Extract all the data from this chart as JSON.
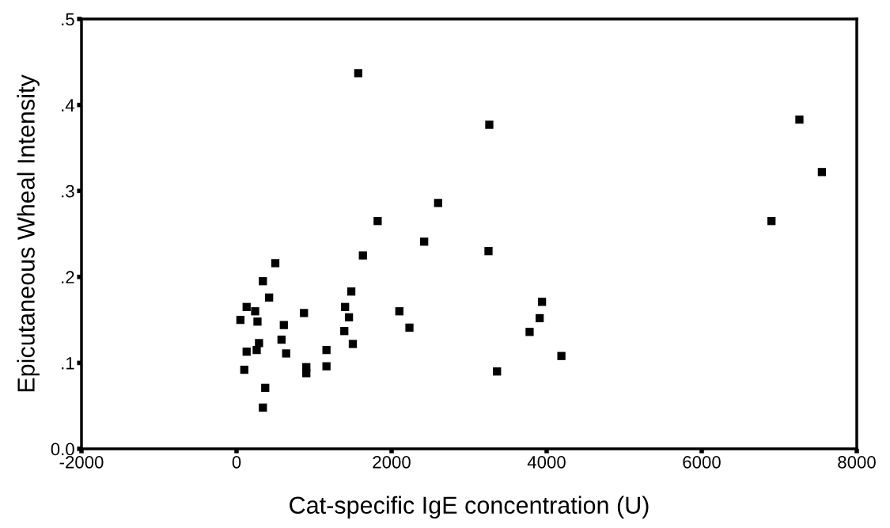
{
  "chart_data": {
    "type": "scatter",
    "xlabel": "Cat-specific IgE concentration (U)",
    "ylabel": "Epicutaneous Wheal Intensity",
    "x": [
      500,
      340,
      420,
      130,
      240,
      50,
      270,
      610,
      870,
      580,
      290,
      260,
      130,
      640,
      100,
      370,
      340,
      900,
      900,
      1160,
      1160,
      1400,
      1450,
      1480,
      1390,
      1500,
      1630,
      2100,
      2230,
      2420,
      3260,
      2600,
      3250,
      3940,
      3910,
      3780,
      4190,
      3360,
      1570,
      1820,
      7260,
      7550,
      6900
    ],
    "values": [
      0.216,
      0.195,
      0.176,
      0.165,
      0.16,
      0.15,
      0.148,
      0.144,
      0.158,
      0.127,
      0.123,
      0.115,
      0.113,
      0.111,
      0.092,
      0.071,
      0.048,
      0.095,
      0.088,
      0.115,
      0.096,
      0.165,
      0.153,
      0.183,
      0.137,
      0.122,
      0.225,
      0.16,
      0.141,
      0.241,
      0.377,
      0.286,
      0.23,
      0.171,
      0.152,
      0.136,
      0.108,
      0.09,
      0.437,
      0.265,
      0.383,
      0.322,
      0.265
    ],
    "color": "#000000",
    "marker": "square",
    "grid": false,
    "legend": false,
    "xlim": [
      -2000,
      8000
    ],
    "xticks": [
      -2000,
      0,
      2000,
      4000,
      6000,
      8000
    ],
    "ylim": [
      0,
      0.5
    ],
    "yticks": [
      {
        "value": 0,
        "label": "0.0"
      },
      {
        "value": 0.1,
        "label": ".1"
      },
      {
        "value": 0.2,
        "label": ".2"
      },
      {
        "value": 0.3,
        "label": ".3"
      },
      {
        "value": 0.4,
        "label": ".4"
      },
      {
        "value": 0.5,
        "label": ".5"
      }
    ]
  }
}
